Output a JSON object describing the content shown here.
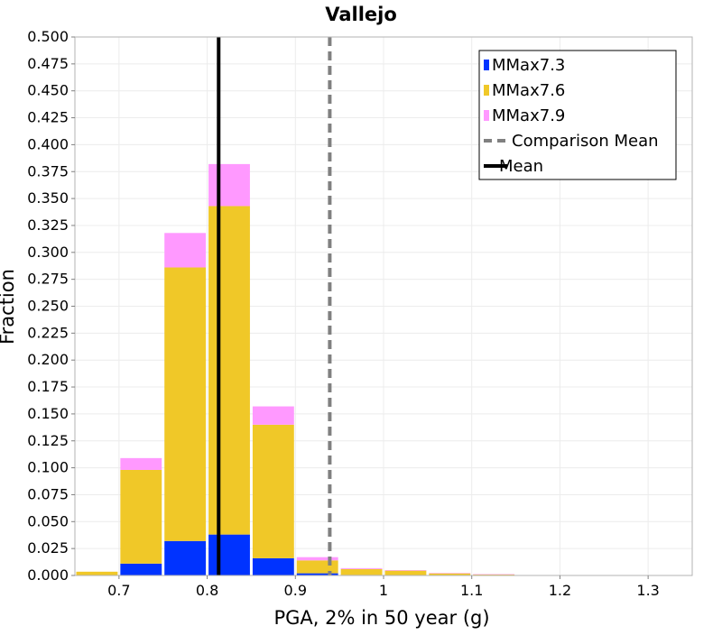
{
  "chart_data": {
    "type": "bar",
    "stacked": true,
    "title": "Vallejo",
    "xlabel": "PGA, 2% in 50 year (g)",
    "ylabel": "Fraction",
    "xlim": [
      0.65,
      1.35
    ],
    "ylim": [
      0,
      0.5
    ],
    "xticks": [
      "0.7",
      "0.8",
      "0.9",
      "1",
      "1.1",
      "1.2",
      "1.3"
    ],
    "yticks": [
      "0.000",
      "0.025",
      "0.050",
      "0.075",
      "0.100",
      "0.125",
      "0.150",
      "0.175",
      "0.200",
      "0.225",
      "0.250",
      "0.275",
      "0.300",
      "0.325",
      "0.350",
      "0.375",
      "0.400",
      "0.425",
      "0.450",
      "0.475",
      "0.500"
    ],
    "bin_width": 0.05,
    "bin_centers": [
      0.675,
      0.725,
      0.775,
      0.825,
      0.875,
      0.925,
      0.975,
      1.025,
      1.075,
      1.125
    ],
    "series": [
      {
        "name": "MMax7.3",
        "color": "#0033ff",
        "values": [
          0.0003,
          0.011,
          0.032,
          0.038,
          0.016,
          0.002,
          0.0005,
          0.0003,
          0.0002,
          0.0001
        ]
      },
      {
        "name": "MMax7.6",
        "color": "#f0c828",
        "values": [
          0.0032,
          0.087,
          0.254,
          0.305,
          0.124,
          0.012,
          0.0055,
          0.0042,
          0.0018,
          0.0009
        ]
      },
      {
        "name": "MMax7.9",
        "color": "#ff99ff",
        "values": [
          0.0,
          0.011,
          0.032,
          0.039,
          0.017,
          0.003,
          0.0008,
          0.0005,
          0.0003,
          0.0002
        ]
      }
    ],
    "lines": [
      {
        "name": "Comparison Mean",
        "x": 0.939,
        "style": "dashed",
        "color": "#808080"
      },
      {
        "name": "Mean",
        "x": 0.813,
        "style": "solid",
        "color": "#000000"
      }
    ],
    "grid": true,
    "legend_position": "top-right"
  }
}
